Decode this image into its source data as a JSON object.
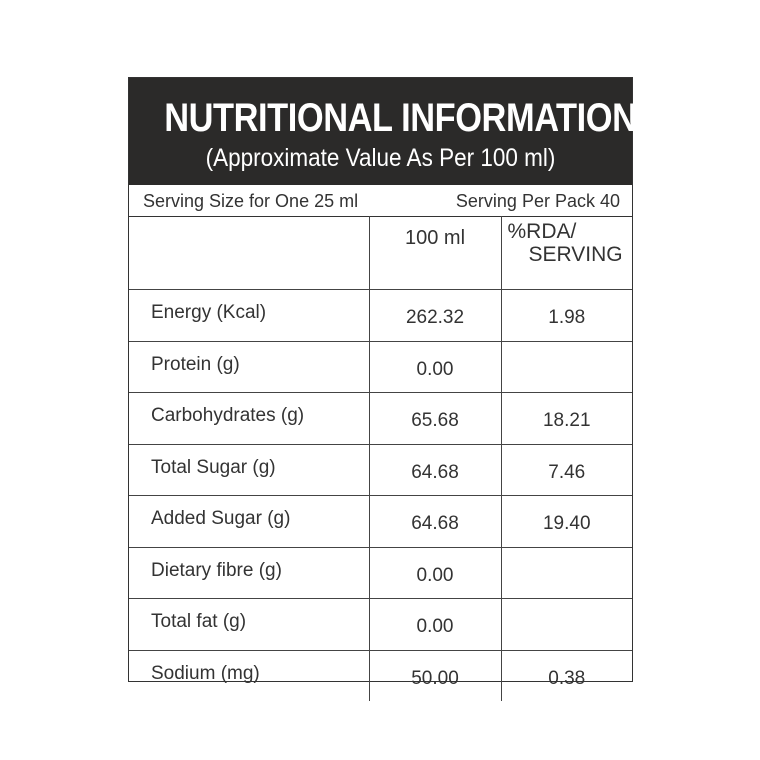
{
  "header": {
    "title": "NUTRITIONAL INFORMATION",
    "subtitle": "(Approximate Value As Per 100 ml)"
  },
  "serving": {
    "size": "Serving Size for One 25 ml",
    "per_pack": "Serving Per Pack 40"
  },
  "table": {
    "col_100ml": "100 ml",
    "col_rda_line1": "%RDA/",
    "col_rda_line2": "SERVING",
    "rows": [
      {
        "name": "Energy (Kcal)",
        "per100": "262.32",
        "rda": "1.98"
      },
      {
        "name": "Protein (g)",
        "per100": "0.00",
        "rda": ""
      },
      {
        "name": "Carbohydrates (g)",
        "per100": "65.68",
        "rda": "18.21"
      },
      {
        "name": "Total Sugar (g)",
        "per100": "64.68",
        "rda": "7.46"
      },
      {
        "name": "Added Sugar (g)",
        "per100": "64.68",
        "rda": "19.40"
      },
      {
        "name": "Dietary fibre (g)",
        "per100": "0.00",
        "rda": ""
      },
      {
        "name": "Total fat (g)",
        "per100": "0.00",
        "rda": ""
      },
      {
        "name": "Sodium (mg)",
        "per100": "50.00",
        "rda": "0.38"
      }
    ]
  },
  "colors": {
    "header_bg": "#2b2a29",
    "header_text": "#ffffff",
    "border": "#333333"
  }
}
